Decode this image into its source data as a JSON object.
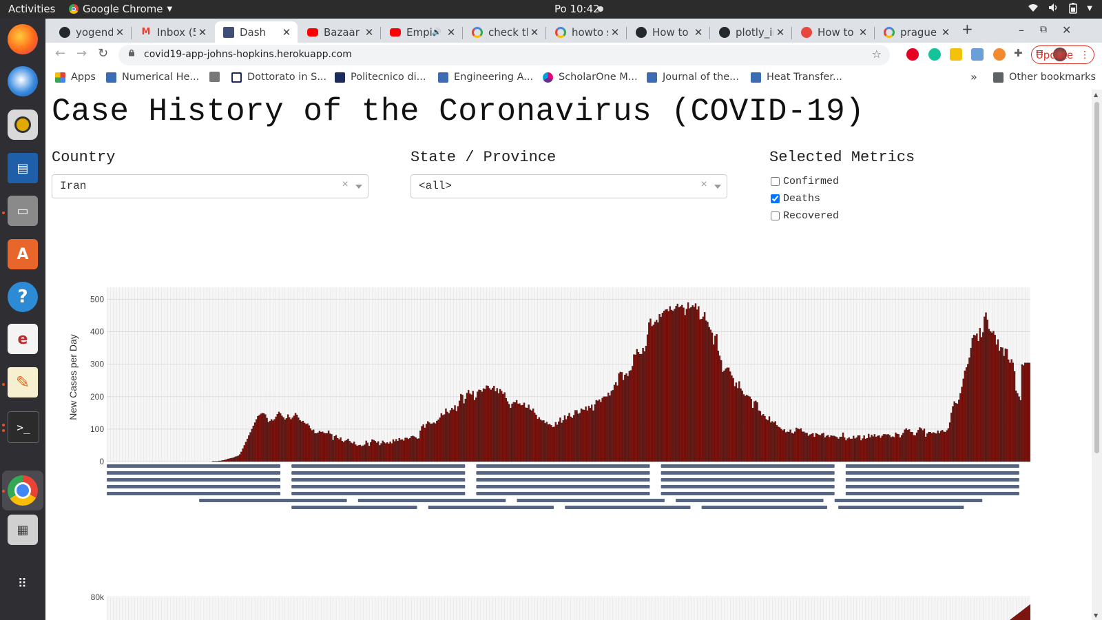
{
  "os": {
    "activities": "Activities",
    "app_name": "Google Chrome",
    "clock": "Po 10:42"
  },
  "browser": {
    "tabs": [
      {
        "title": "yogende",
        "icon": "github-icon",
        "active": false
      },
      {
        "title": "Inbox (5",
        "icon": "gmail-icon",
        "active": false
      },
      {
        "title": "Dash",
        "icon": "dash-icon",
        "active": true
      },
      {
        "title": "Bazaar -",
        "icon": "youtube-icon",
        "active": false
      },
      {
        "title": "Empi",
        "icon": "youtube-icon",
        "active": false
      },
      {
        "title": "check th",
        "icon": "google-icon",
        "active": false
      },
      {
        "title": "howto s",
        "icon": "google-icon",
        "active": false
      },
      {
        "title": "How to c",
        "icon": "github-icon",
        "active": false
      },
      {
        "title": "plotly_ir",
        "icon": "github-icon",
        "active": false
      },
      {
        "title": "How to c",
        "icon": "plotly-icon",
        "active": false
      },
      {
        "title": "prague v",
        "icon": "google-icon",
        "active": false
      }
    ],
    "url": "covid19-app-johns-hopkins.herokuapp.com",
    "update_label": "Update",
    "bookmarks": [
      {
        "label": "Apps",
        "icon": "apps-grid-icon"
      },
      {
        "label": "Numerical He...",
        "icon": "bookmark-site-icon"
      },
      {
        "label": "",
        "icon": "tool-icon"
      },
      {
        "label": "Dottorato in S...",
        "icon": "rm-icon"
      },
      {
        "label": "Politecnico di...",
        "icon": "polimi-icon"
      },
      {
        "label": "Engineering A...",
        "icon": "bookmark-site-icon"
      },
      {
        "label": "ScholarOne M...",
        "icon": "scholarone-icon"
      },
      {
        "label": "Journal of the...",
        "icon": "bookmark-site-icon"
      },
      {
        "label": "Heat Transfer...",
        "icon": "bookmark-site-icon"
      }
    ],
    "bookmarks_overflow": "»",
    "other_bookmarks": "Other bookmarks"
  },
  "page": {
    "title": "Case History of the Coronavirus (COVID-19)",
    "country_label": "Country",
    "country_value": "Iran",
    "state_label": "State / Province",
    "state_value": "<all>",
    "metrics_label": "Selected Metrics",
    "metrics": [
      {
        "label": "Confirmed",
        "checked": false
      },
      {
        "label": "Deaths",
        "checked": true
      },
      {
        "label": "Recovered",
        "checked": false
      }
    ]
  },
  "chart_data": [
    {
      "type": "bar",
      "title": "",
      "ylabel": "New Cases per Day",
      "ylim": [
        0,
        520
      ],
      "yticks": [
        0,
        100,
        200,
        300,
        400,
        500
      ],
      "ytick_labels": [
        "0",
        "100",
        "200",
        "300",
        "400",
        "500"
      ],
      "bar_color": "#7a1510",
      "grid": true,
      "x_label_note": "daily x tick labels, overlapping and unreadable",
      "series": [
        {
          "name": "Deaths",
          "values": [
            0,
            0,
            0,
            0,
            0,
            0,
            0,
            0,
            0,
            0,
            0,
            0,
            0,
            0,
            0,
            0,
            0,
            0,
            0,
            0,
            0,
            0,
            0,
            0,
            0,
            0,
            0,
            0,
            0,
            0,
            0,
            0,
            0,
            0,
            0,
            0,
            0,
            0,
            0,
            0,
            0,
            0,
            0,
            0,
            0,
            0,
            0,
            0,
            0,
            0,
            0,
            0,
            0,
            0,
            0,
            0,
            0,
            0,
            0,
            0,
            0,
            0,
            0,
            0,
            0,
            0,
            0,
            0,
            0,
            0,
            1,
            1,
            1,
            1,
            2,
            2,
            3,
            4,
            5,
            6,
            8,
            9,
            10,
            11,
            12,
            15,
            16,
            18,
            22,
            30,
            40,
            50,
            60,
            70,
            80,
            90,
            100,
            110,
            120,
            130,
            140,
            143,
            147,
            149,
            148,
            145,
            134,
            121,
            125,
            130,
            126,
            130,
            138,
            146,
            153,
            148,
            141,
            136,
            129,
            133,
            145,
            136,
            130,
            135,
            141,
            149,
            144,
            135,
            127,
            123,
            125,
            119,
            115,
            117,
            111,
            102,
            96,
            98,
            87,
            87,
            89,
            94,
            91,
            92,
            88,
            87,
            87,
            95,
            86,
            84,
            66,
            78,
            81,
            72,
            68,
            74,
            63,
            60,
            64,
            66,
            70,
            63,
            58,
            56,
            61,
            52,
            48,
            50,
            51,
            47,
            49,
            52,
            64,
            58,
            48,
            59,
            68,
            66,
            63,
            58,
            62,
            50,
            56,
            64,
            59,
            56,
            59,
            55,
            61,
            56,
            68,
            62,
            69,
            63,
            72,
            67,
            68,
            64,
            73,
            73,
            69,
            72,
            78,
            79,
            77,
            74,
            70,
            71,
            95,
            109,
            114,
            104,
            116,
            124,
            120,
            116,
            117,
            120,
            117,
            125,
            129,
            135,
            148,
            143,
            145,
            163,
            153,
            148,
            158,
            165,
            160,
            173,
            155,
            170,
            187,
            208,
            205,
            179,
            193,
            211,
            220,
            209,
            206,
            217,
            189,
            197,
            215,
            221,
            220,
            215,
            225,
            223,
            234,
            233,
            226,
            221,
            227,
            233,
            216,
            226,
            210,
            223,
            217,
            208,
            213,
            195,
            185,
            177,
            165,
            178,
            183,
            182,
            189,
            178,
            179,
            173,
            174,
            181,
            166,
            165,
            175,
            160,
            157,
            163,
            150,
            144,
            131,
            136,
            129,
            126,
            127,
            118,
            122,
            114,
            115,
            112,
            106,
            107,
            121,
            113,
            123,
            135,
            119,
            127,
            142,
            130,
            140,
            149,
            138,
            134,
            143,
            158,
            158,
            147,
            149,
            163,
            160,
            159,
            169,
            157,
            171,
            165,
            175,
            157,
            176,
            189,
            187,
            191,
            183,
            196,
            200,
            200,
            200,
            212,
            203,
            217,
            220,
            236,
            244,
            234,
            271,
            276,
            275,
            251,
            267,
            271,
            263,
            279,
            281,
            294,
            330,
            329,
            346,
            337,
            331,
            331,
            350,
            339,
            356,
            391,
            428,
            440,
            417,
            421,
            430,
            436,
            428,
            454,
            445,
            458,
            464,
            468,
            469,
            463,
            478,
            467,
            464,
            470,
            479,
            486,
            475,
            478,
            482,
            474,
            451,
            470,
            490,
            472,
            475,
            481,
            476,
            487,
            468,
            478,
            438,
            439,
            446,
            460,
            434,
            430,
            414,
            406,
            397,
            360,
            387,
            392,
            341,
            326,
            312,
            276,
            280,
            286,
            289,
            289,
            277,
            265,
            257,
            232,
            243,
            226,
            247,
            225,
            218,
            207,
            202,
            205,
            202,
            200,
            193,
            165,
            185,
            187,
            182,
            157,
            155,
            142,
            146,
            140,
            130,
            127,
            139,
            120,
            124,
            120,
            124,
            112,
            107,
            105,
            100,
            96,
            99,
            90,
            92,
            91,
            98,
            88,
            86,
            92,
            104,
            101,
            99,
            102,
            92,
            92,
            88,
            88,
            79,
            83,
            85,
            87,
            76,
            87,
            85,
            82,
            81,
            86,
            88,
            74,
            79,
            81,
            75,
            80,
            79,
            79,
            77,
            75,
            70,
            76,
            76,
            89,
            74,
            65,
            71,
            74,
            70,
            70,
            79,
            71,
            74,
            80,
            80,
            65,
            71,
            80,
            70,
            72,
            85,
            74,
            82,
            77,
            84,
            76,
            79,
            80,
            73,
            79,
            84,
            84,
            83,
            84,
            81,
            75,
            77,
            75,
            89,
            85,
            84,
            74,
            81,
            88,
            98,
            102,
            97,
            99,
            91,
            91,
            81,
            80,
            89,
            97,
            105,
            102,
            96,
            101,
            76,
            86,
            91,
            91,
            87,
            90,
            88,
            86,
            95,
            87,
            94,
            97,
            92,
            91,
            96,
            102,
            120,
            150,
            170,
            185,
            180,
            178,
            190,
            210,
            230,
            255,
            280,
            290,
            300,
            320,
            350,
            380,
            390,
            388,
            394,
            371,
            411,
            383,
            398,
            446,
            459,
            437,
            408,
            401,
            397,
            402,
            390,
            360,
            376,
            341,
            352,
            351,
            325,
            348,
            346,
            314,
            304,
            315,
            304,
            278,
            218,
            210,
            200,
            189,
            299,
            296,
            304,
            304,
            304,
            304
          ]
        }
      ]
    },
    {
      "type": "area",
      "title": "",
      "yticks_visible": [
        "80k"
      ]
    }
  ]
}
